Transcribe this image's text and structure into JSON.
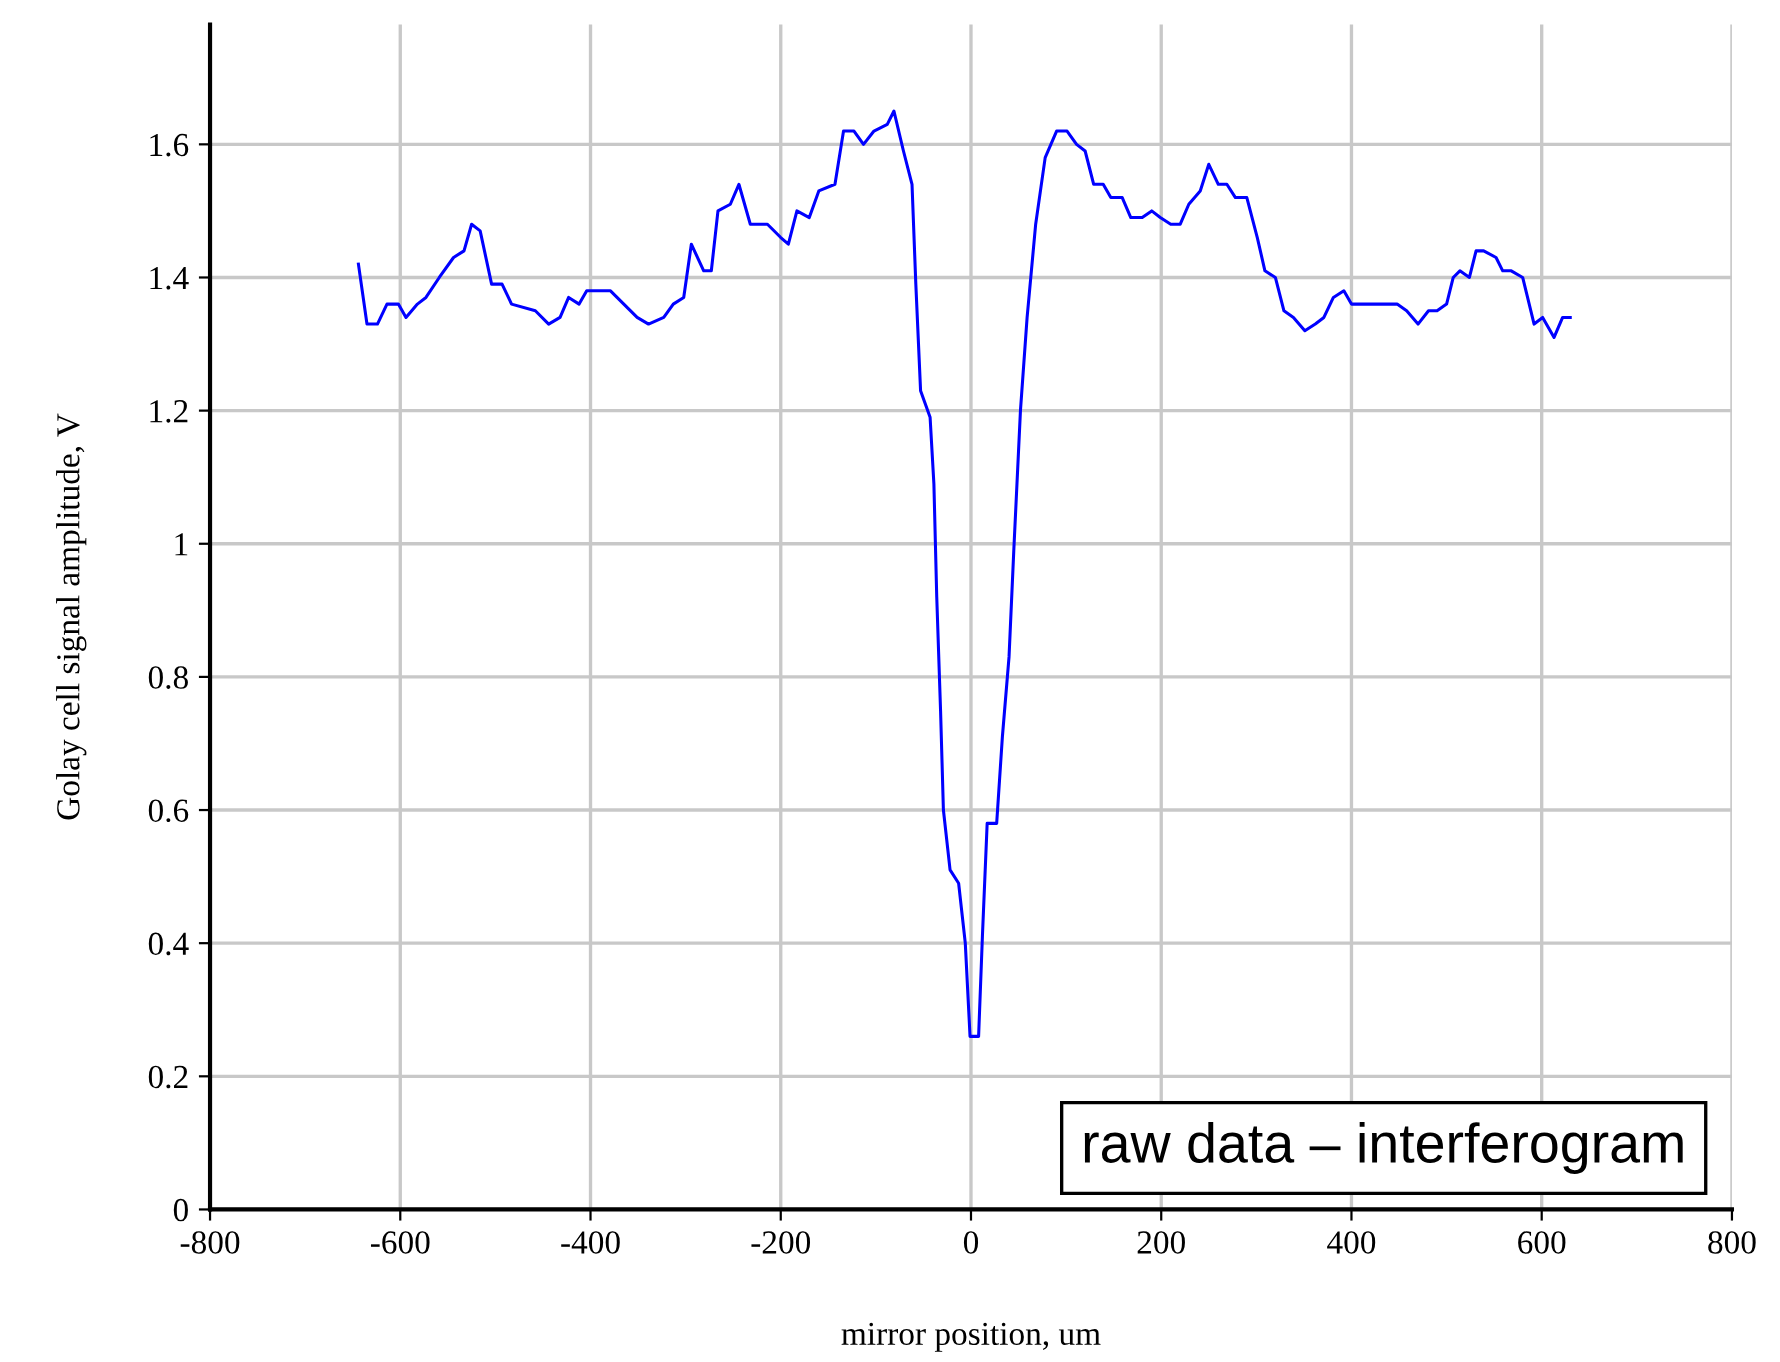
{
  "chart_data": {
    "type": "line",
    "xlabel": "mirror position, um",
    "ylabel": "Golay cell signal amplitude, V",
    "annotations": [
      "raw data – interferogram"
    ],
    "x": [
      -644,
      -635,
      -624,
      -614,
      -602,
      -594,
      -582,
      -573,
      -559,
      -544,
      -533,
      -525,
      -516,
      -504,
      -493,
      -483,
      -458,
      -444,
      -432,
      -423,
      -412,
      -404,
      -379,
      -365,
      -351,
      -339,
      -323,
      -313,
      -302,
      -294,
      -281,
      -273,
      -266,
      -253,
      -244,
      -232,
      -214,
      -200,
      -192,
      -183,
      -170,
      -160,
      -143,
      -134,
      -123,
      -113,
      -102,
      -88,
      -81,
      -71,
      -62,
      -58,
      -53,
      -43,
      -39,
      -36,
      -32,
      -29,
      -22,
      -13,
      -6,
      -1,
      8,
      12,
      17,
      27,
      33,
      40,
      45,
      52,
      59,
      68,
      78,
      90,
      101,
      111,
      120,
      129,
      139,
      147,
      159,
      168,
      180,
      190,
      199,
      210,
      220,
      229,
      241,
      250,
      260,
      269,
      278,
      290,
      301,
      309,
      320,
      329,
      339,
      351,
      362,
      371,
      381,
      392,
      400,
      448,
      458,
      470,
      481,
      490,
      500,
      507,
      514,
      524,
      531,
      539,
      552,
      559,
      568,
      580,
      592,
      601,
      613,
      622,
      630
    ],
    "series": [
      {
        "color": "#0000ff",
        "values": [
          1.42,
          1.33,
          1.33,
          1.36,
          1.36,
          1.34,
          1.36,
          1.37,
          1.4,
          1.43,
          1.44,
          1.48,
          1.47,
          1.39,
          1.39,
          1.36,
          1.35,
          1.33,
          1.34,
          1.37,
          1.36,
          1.38,
          1.38,
          1.36,
          1.34,
          1.33,
          1.34,
          1.36,
          1.37,
          1.45,
          1.41,
          1.41,
          1.5,
          1.51,
          1.54,
          1.48,
          1.48,
          1.46,
          1.45,
          1.5,
          1.49,
          1.53,
          1.54,
          1.62,
          1.62,
          1.6,
          1.62,
          1.63,
          1.65,
          1.59,
          1.54,
          1.39,
          1.23,
          1.19,
          1.09,
          0.92,
          0.75,
          0.6,
          0.51,
          0.49,
          0.4,
          0.26,
          0.26,
          0.41,
          0.58,
          0.58,
          0.71,
          0.83,
          0.99,
          1.2,
          1.34,
          1.48,
          1.58,
          1.62,
          1.62,
          1.6,
          1.59,
          1.54,
          1.54,
          1.52,
          1.52,
          1.49,
          1.49,
          1.5,
          1.49,
          1.48,
          1.48,
          1.51,
          1.53,
          1.57,
          1.54,
          1.54,
          1.52,
          1.52,
          1.46,
          1.41,
          1.4,
          1.35,
          1.34,
          1.32,
          1.33,
          1.34,
          1.37,
          1.38,
          1.36,
          1.36,
          1.35,
          1.33,
          1.35,
          1.35,
          1.36,
          1.4,
          1.41,
          1.4,
          1.44,
          1.44,
          1.43,
          1.41,
          1.41,
          1.4,
          1.33,
          1.34,
          1.31,
          1.34,
          1.34
        ]
      }
    ],
    "xlim": [
      -800,
      800
    ],
    "ylim": [
      0,
      1.78
    ],
    "xticks": [
      -800,
      -600,
      -400,
      -200,
      0,
      200,
      400,
      600,
      800
    ],
    "yticks": [
      0,
      0.2,
      0.4,
      0.6,
      0.8,
      1,
      1.2,
      1.4,
      1.6
    ],
    "grid": true,
    "legend": false,
    "marker": "none",
    "line_style": "solid"
  }
}
